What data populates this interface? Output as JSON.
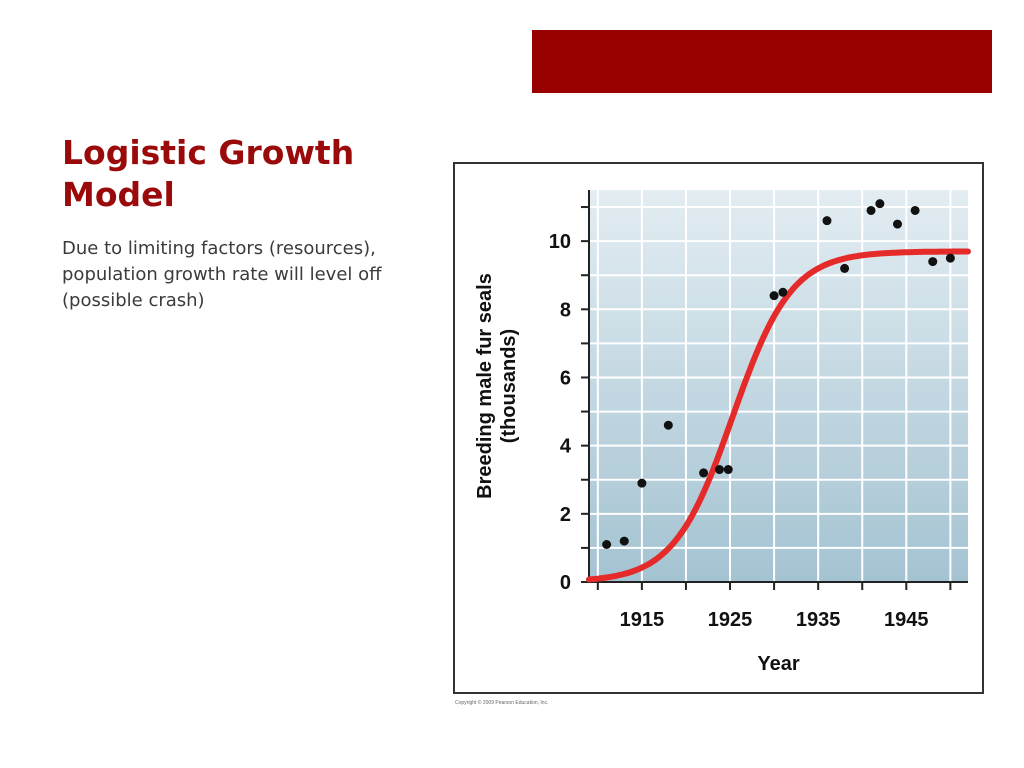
{
  "slide": {
    "title": "Logistic Growth Model",
    "body": "Due to limiting factors (resources), population growth rate will level off (possible crash)",
    "accent_color": "#990000",
    "title_color": "#9b0a0a"
  },
  "figure": {
    "copyright": "Copyright © 2009 Pearson Education, Inc."
  },
  "chart_data": {
    "type": "scatter",
    "title": "",
    "xlabel": "Year",
    "ylabel_line1": "Breeding male fur seals",
    "ylabel_line2": "(thousands)",
    "xlim": [
      1909,
      1952
    ],
    "ylim": [
      0,
      11.5
    ],
    "x_ticks": [
      1915,
      1925,
      1935,
      1945
    ],
    "y_ticks": [
      0,
      2,
      4,
      6,
      8,
      10
    ],
    "grid": true,
    "series": [
      {
        "type": "scatter",
        "color": "#111111",
        "points": [
          {
            "x": 1911,
            "y": 1.1
          },
          {
            "x": 1913,
            "y": 1.2
          },
          {
            "x": 1915,
            "y": 2.9
          },
          {
            "x": 1918,
            "y": 4.6
          },
          {
            "x": 1922,
            "y": 3.2
          },
          {
            "x": 1923.8,
            "y": 3.3
          },
          {
            "x": 1924.8,
            "y": 3.3
          },
          {
            "x": 1930,
            "y": 8.4
          },
          {
            "x": 1931,
            "y": 8.5
          },
          {
            "x": 1936,
            "y": 10.6
          },
          {
            "x": 1938,
            "y": 9.2
          },
          {
            "x": 1941,
            "y": 10.9
          },
          {
            "x": 1942,
            "y": 11.1
          },
          {
            "x": 1944,
            "y": 10.5
          },
          {
            "x": 1946,
            "y": 10.9
          },
          {
            "x": 1948,
            "y": 9.4
          },
          {
            "x": 1950,
            "y": 9.5
          }
        ]
      },
      {
        "type": "line",
        "color": "#e52a2a",
        "model": "logistic",
        "carrying_capacity": 9.7,
        "growth_rate": 0.3,
        "midpoint_year": 1925.3
      }
    ]
  }
}
